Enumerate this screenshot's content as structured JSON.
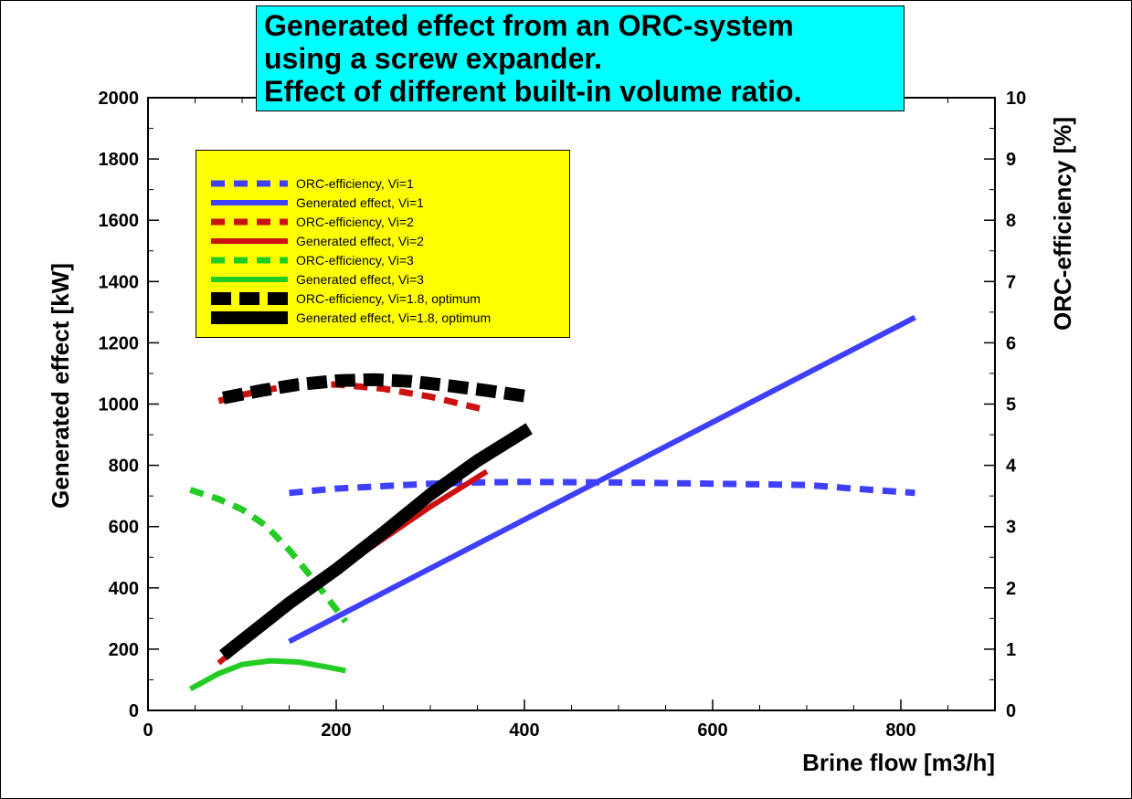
{
  "title_lines": [
    "Generated effect from an ORC-system",
    "using a screw expander.",
    "Effect of different built-in volume ratio."
  ],
  "legend": [
    {
      "label": "ORC-efficiency, Vi=1",
      "color": "#3f3fff",
      "style": "dashed",
      "weight": "normal"
    },
    {
      "label": "Generated effect, Vi=1",
      "color": "#3f3fff",
      "style": "solid",
      "weight": "normal"
    },
    {
      "label": "ORC-efficiency, Vi=2",
      "color": "#cc1111",
      "style": "dashed",
      "weight": "normal"
    },
    {
      "label": "Generated effect, Vi=2",
      "color": "#cc1111",
      "style": "solid",
      "weight": "normal"
    },
    {
      "label": "ORC-efficiency, Vi=3",
      "color": "#22cc22",
      "style": "dashed",
      "weight": "normal"
    },
    {
      "label": "Generated effect, Vi=3",
      "color": "#22cc22",
      "style": "solid",
      "weight": "normal"
    },
    {
      "label": "ORC-efficiency, Vi=1.8, optimum",
      "color": "#000000",
      "style": "dashed",
      "weight": "bold"
    },
    {
      "label": "Generated effect, Vi=1.8, optimum",
      "color": "#000000",
      "style": "solid",
      "weight": "bold"
    }
  ],
  "chart_data": {
    "type": "line",
    "xlabel": "Brine flow [m3/h]",
    "ylabel": "Generated effect [kW]",
    "y2label": "ORC-efficiency [%]",
    "xlim": [
      0,
      900
    ],
    "ylim": [
      0,
      2000
    ],
    "y2lim": [
      0,
      10
    ],
    "xticks": [
      0,
      200,
      400,
      600,
      800
    ],
    "yticks": [
      0,
      200,
      400,
      600,
      800,
      1000,
      1200,
      1400,
      1600,
      1800,
      2000
    ],
    "y2ticks": [
      0,
      1,
      2,
      3,
      4,
      5,
      6,
      7,
      8,
      9,
      10
    ],
    "grid": false,
    "legend_position": "top-left",
    "series": [
      {
        "name": "ORC-efficiency, Vi=1",
        "axis": "y2",
        "x": [
          150,
          200,
          250,
          300,
          350,
          400,
          500,
          600,
          700,
          750,
          815
        ],
        "values": [
          3.55,
          3.62,
          3.66,
          3.7,
          3.72,
          3.73,
          3.72,
          3.7,
          3.68,
          3.62,
          3.55
        ]
      },
      {
        "name": "Generated effect, Vi=1",
        "axis": "y",
        "x": [
          150,
          815
        ],
        "values": [
          225,
          1283
        ]
      },
      {
        "name": "ORC-efficiency, Vi=2",
        "axis": "y2",
        "x": [
          75,
          100,
          150,
          200,
          250,
          300,
          360
        ],
        "values": [
          5.05,
          5.15,
          5.3,
          5.32,
          5.25,
          5.12,
          4.9
        ]
      },
      {
        "name": "Generated effect, Vi=2",
        "axis": "y",
        "x": [
          75,
          150,
          200,
          250,
          300,
          360
        ],
        "values": [
          155,
          340,
          455,
          560,
          665,
          780
        ]
      },
      {
        "name": "ORC-efficiency, Vi=3",
        "axis": "y2",
        "x": [
          45,
          75,
          100,
          125,
          150,
          175,
          200,
          210
        ],
        "values": [
          3.6,
          3.45,
          3.28,
          3.02,
          2.62,
          2.15,
          1.65,
          1.45
        ]
      },
      {
        "name": "Generated effect, Vi=3",
        "axis": "y",
        "x": [
          45,
          75,
          100,
          130,
          160,
          190,
          210
        ],
        "values": [
          70,
          120,
          150,
          162,
          158,
          142,
          130
        ]
      },
      {
        "name": "ORC-efficiency, Vi=1.8, optimum",
        "axis": "y2",
        "x": [
          80,
          120,
          160,
          200,
          240,
          280,
          320,
          360,
          405
        ],
        "values": [
          5.1,
          5.22,
          5.32,
          5.38,
          5.4,
          5.37,
          5.3,
          5.22,
          5.12
        ]
      },
      {
        "name": "Generated effect, Vi=1.8, optimum",
        "axis": "y",
        "x": [
          80,
          150,
          200,
          250,
          300,
          350,
          405
        ],
        "values": [
          180,
          350,
          460,
          580,
          705,
          815,
          920
        ]
      }
    ]
  }
}
